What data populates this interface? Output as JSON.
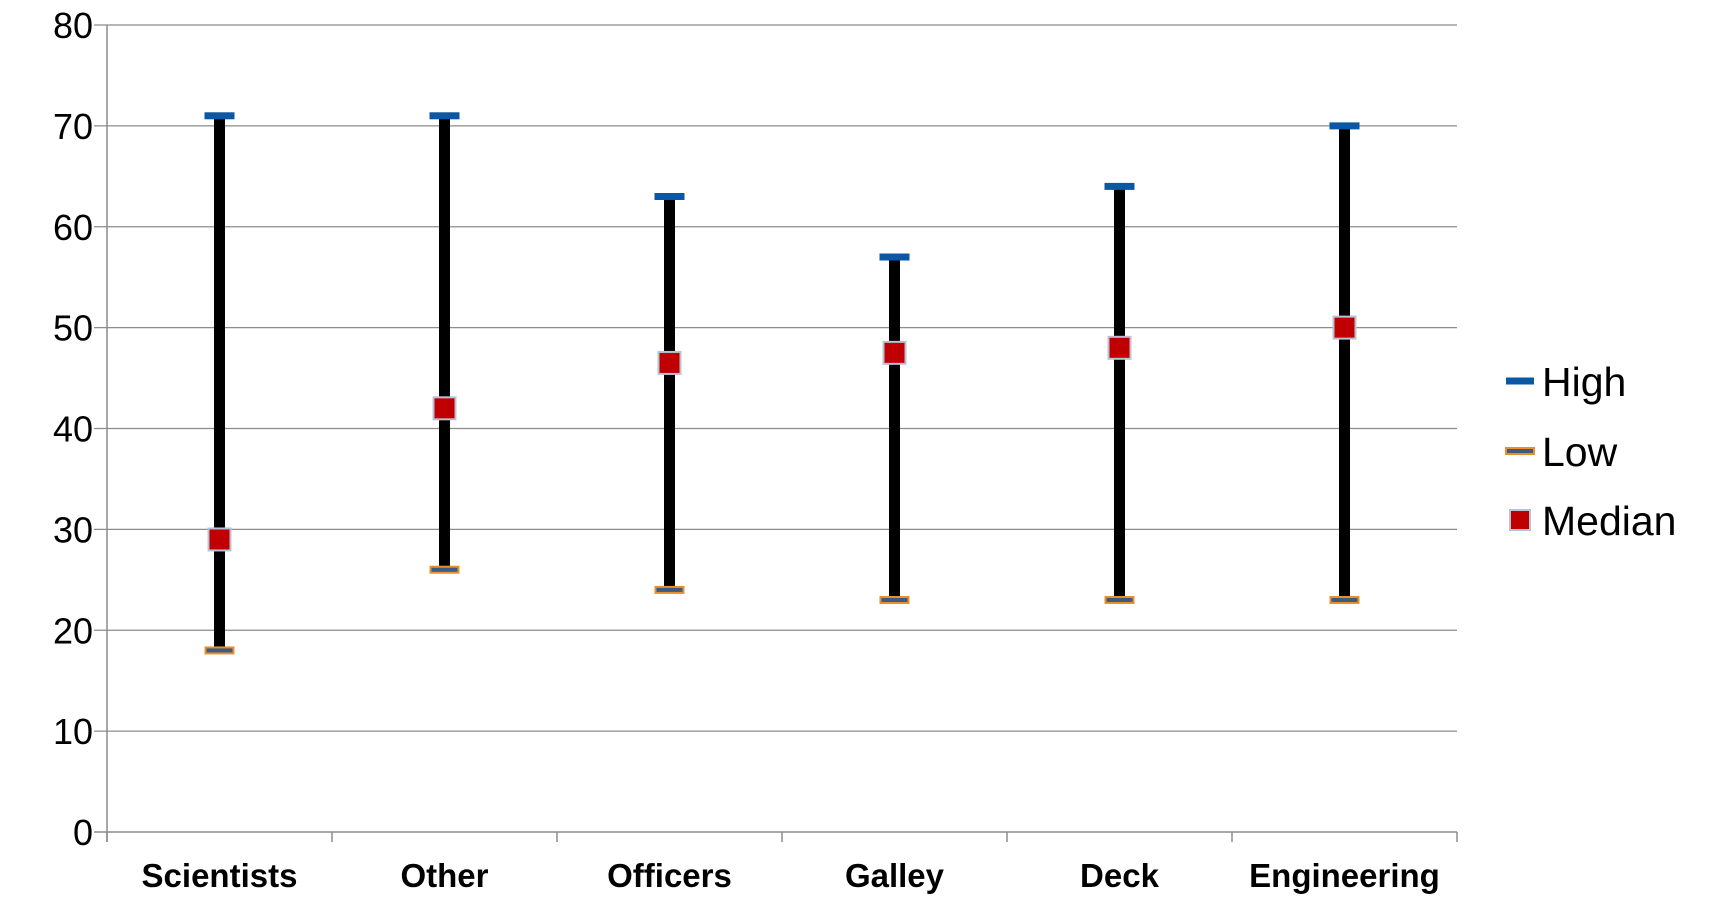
{
  "chart_data": {
    "type": "stock-hlc",
    "categories": [
      "Scientists",
      "Other",
      "Officers",
      "Galley",
      "Deck",
      "Engineering"
    ],
    "series": [
      {
        "name": "High",
        "values": [
          71,
          71,
          63,
          57,
          64,
          70
        ],
        "color": "#0b57a4"
      },
      {
        "name": "Low",
        "values": [
          18,
          26,
          24,
          23,
          23,
          23
        ],
        "color": "#e8902c"
      },
      {
        "name": "Median",
        "values": [
          29,
          42,
          46.5,
          47.5,
          48,
          50
        ],
        "color": "#c00000"
      }
    ],
    "range_line_color": "#000000",
    "y_axis": {
      "min": 0,
      "max": 80,
      "step": 10,
      "tick_labels": [
        "0",
        "10",
        "20",
        "30",
        "40",
        "50",
        "60",
        "70",
        "80"
      ]
    },
    "grid": true,
    "gridline_color": "#8c8c8c",
    "legend_position": "right",
    "title": "",
    "xlabel": "",
    "ylabel": ""
  }
}
